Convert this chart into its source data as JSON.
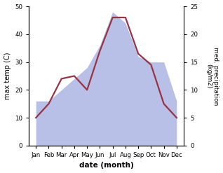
{
  "months": [
    "Jan",
    "Feb",
    "Mar",
    "Apr",
    "May",
    "Jun",
    "Jul",
    "Aug",
    "Sep",
    "Oct",
    "Nov",
    "Dec"
  ],
  "temp": [
    10,
    15,
    24,
    25,
    20,
    34,
    46,
    46,
    33,
    29,
    15,
    10
  ],
  "precip": [
    8,
    8,
    10,
    12,
    14,
    18,
    24,
    22,
    16,
    15,
    15,
    8
  ],
  "temp_color": "#993344",
  "precip_fill_color": "#b8c0e8",
  "ylabel_left": "max temp (C)",
  "ylabel_right": "med. precipitation\n(kg/m2)",
  "xlabel": "date (month)",
  "ylim_left": [
    0,
    50
  ],
  "ylim_right": [
    0,
    25
  ],
  "yticks_left": [
    0,
    10,
    20,
    30,
    40,
    50
  ],
  "yticks_right": [
    0,
    5,
    10,
    15,
    20,
    25
  ],
  "bg_color": "#ffffff",
  "line_width": 1.6
}
